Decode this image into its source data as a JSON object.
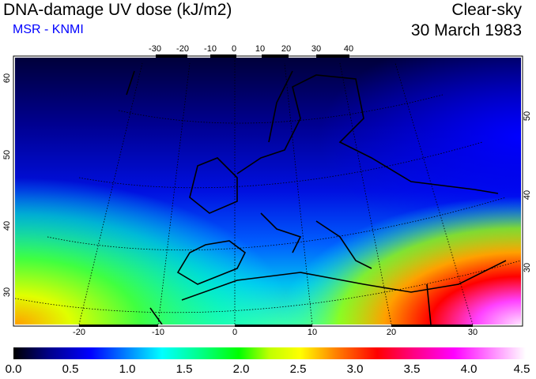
{
  "header": {
    "title": "DNA-damage UV dose (kJ/m2)",
    "subtitle": "MSR - KNMI",
    "sky": "Clear-sky",
    "date": "30 March 1983"
  },
  "axes": {
    "top_lon": [
      "-30",
      "-20",
      "-10",
      "0",
      "10",
      "20",
      "30",
      "40"
    ],
    "bottom_lon": [
      "-20",
      "-10",
      "0",
      "10",
      "20",
      "30"
    ],
    "left_lat": [
      "60",
      "50",
      "40",
      "30"
    ],
    "right_lat": [
      "50",
      "40",
      "30"
    ]
  },
  "colorbar": {
    "labels": [
      "0.0",
      "0.5",
      "1.0",
      "1.5",
      "2.0",
      "2.5",
      "3.0",
      "3.5",
      "4.0",
      "4.5"
    ],
    "min": 0.0,
    "max": 4.5
  }
}
